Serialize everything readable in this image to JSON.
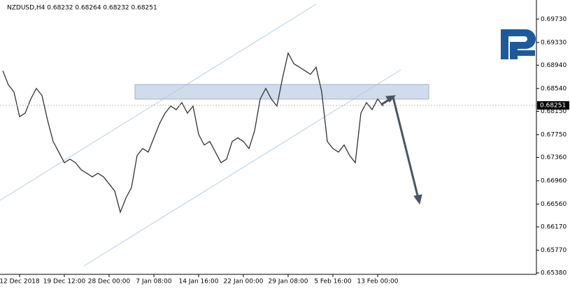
{
  "chart_data": {
    "type": "line",
    "title": "NZDUSD,H4  0.68232 0.68264 0.68232 0.68251",
    "color": "#333333",
    "categories": [
      null,
      null,
      null,
      "12 Dec 2018",
      null,
      null,
      null,
      null,
      null,
      null,
      null,
      "19 Dec 12:00",
      null,
      null,
      null,
      null,
      null,
      null,
      null,
      "28 Dec 00:00",
      null,
      null,
      null,
      null,
      null,
      null,
      null,
      "7 Jan 08:00",
      null,
      null,
      null,
      null,
      null,
      null,
      null,
      "14 Jan 16:00",
      null,
      null,
      null,
      null,
      null,
      null,
      null,
      "22 Jan 00:00",
      null,
      null,
      null,
      null,
      null,
      null,
      null,
      "29 Jan 08:00",
      null,
      null,
      null,
      null,
      null,
      null,
      null,
      "5 Feb 16:00",
      null,
      null,
      null,
      null,
      null,
      null,
      null,
      "13 Feb 00:00",
      null
    ],
    "values": [
      0.68845,
      0.68603,
      0.68481,
      0.68057,
      0.68118,
      0.6836,
      0.68542,
      0.68421,
      0.67997,
      0.67633,
      0.67451,
      0.67269,
      0.6733,
      0.67269,
      0.67148,
      0.67088,
      0.67027,
      0.67088,
      0.67027,
      0.66906,
      0.66785,
      0.66421,
      0.66663,
      0.66845,
      0.67391,
      0.67512,
      0.67451,
      0.67694,
      0.67936,
      0.68118,
      0.68239,
      0.68178,
      0.683,
      0.68118,
      0.68239,
      0.67754,
      0.67572,
      0.67633,
      0.67451,
      0.67269,
      0.6733,
      0.67633,
      0.67694,
      0.67633,
      0.67512,
      0.67815,
      0.6836,
      0.68542,
      0.6836,
      0.68239,
      0.68724,
      0.69148,
      0.68966,
      0.68906,
      0.68845,
      0.68784,
      0.68906,
      0.68481,
      0.67633,
      0.67512,
      0.67451,
      0.67572,
      0.67391,
      0.67269,
      0.68118,
      0.683,
      0.68178,
      0.6836,
      0.68239
    ],
    "current_price": 0.68251,
    "ylim": [
      0.65356,
      0.70057
    ],
    "yticks": [
      {
        "value": 0.6973,
        "label": "0.69730"
      },
      {
        "value": 0.6933,
        "label": "0.69330"
      },
      {
        "value": 0.6894,
        "label": "0.68940"
      },
      {
        "value": 0.6854,
        "label": "0.68540"
      },
      {
        "value": 0.6815,
        "label": "0.68150"
      },
      {
        "value": 0.6775,
        "label": "0.67750"
      },
      {
        "value": 0.6736,
        "label": "0.67360"
      },
      {
        "value": 0.6696,
        "label": "0.66960"
      },
      {
        "value": 0.6656,
        "label": "0.66560"
      },
      {
        "value": 0.6617,
        "label": "0.66170"
      },
      {
        "value": 0.6577,
        "label": "0.65770"
      },
      {
        "value": 0.6538,
        "label": "0.65380"
      }
    ]
  }
}
